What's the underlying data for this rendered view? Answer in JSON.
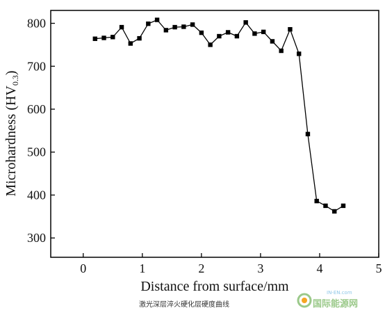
{
  "chart_data": {
    "type": "line",
    "xlabel": "Distance from surface/mm",
    "ylabel": "Microhardness (HV",
    "ylabel_sub": "0.3",
    "ylabel_close": ")",
    "xlim": [
      -0.55,
      5
    ],
    "ylim": [
      255,
      830
    ],
    "xticks": [
      0,
      1,
      2,
      3,
      4,
      5
    ],
    "yticks": [
      300,
      400,
      500,
      600,
      700,
      800
    ],
    "grid": false,
    "marker": "square",
    "series": [
      {
        "x": [
          0.2,
          0.35,
          0.5,
          0.65,
          0.8,
          0.95,
          1.1,
          1.25,
          1.4,
          1.55,
          1.7,
          1.85,
          2.0,
          2.15,
          2.3,
          2.45,
          2.6,
          2.75,
          2.9,
          3.05,
          3.2,
          3.35,
          3.5,
          3.65,
          3.8,
          3.95,
          4.1,
          4.25,
          4.4
        ],
        "y": [
          764,
          766,
          768,
          791,
          753,
          765,
          799,
          808,
          784,
          791,
          792,
          797,
          778,
          750,
          770,
          779,
          770,
          802,
          776,
          780,
          758,
          736,
          786,
          729,
          542,
          386,
          375,
          362,
          375
        ]
      }
    ]
  },
  "caption": "激光深层淬火硬化层硬度曲线",
  "watermark": {
    "small": "IN-EN.com",
    "main": "国际能源网"
  },
  "colors": {
    "line": "#000000",
    "marker": "#000000",
    "axis": "#000000"
  }
}
